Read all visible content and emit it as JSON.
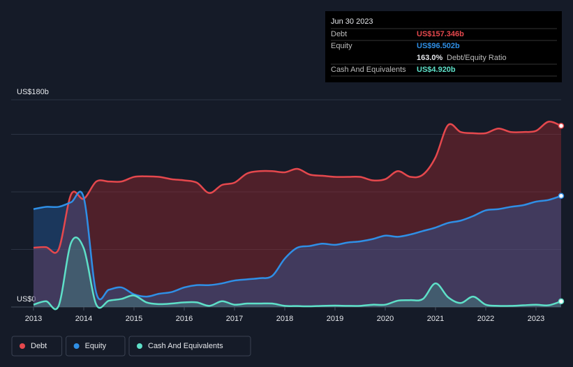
{
  "chart_data": {
    "type": "line",
    "ylim": [
      0,
      180
    ],
    "yticks": [
      {
        "value": 0,
        "label": "US$0"
      },
      {
        "value": 180,
        "label": "US$180b"
      }
    ],
    "ygrid": [
      50,
      100,
      150,
      180
    ],
    "xlim": [
      2013,
      2023.5
    ],
    "xticks": [
      2013,
      2014,
      2015,
      2016,
      2017,
      2018,
      2019,
      2020,
      2021,
      2022,
      2023
    ],
    "x": [
      2013,
      2013.25,
      2013.5,
      2013.75,
      2014,
      2014.25,
      2014.5,
      2014.75,
      2015,
      2015.25,
      2015.5,
      2015.75,
      2016,
      2016.25,
      2016.5,
      2016.75,
      2017,
      2017.25,
      2017.5,
      2017.75,
      2018,
      2018.25,
      2018.5,
      2018.75,
      2019,
      2019.25,
      2019.5,
      2019.75,
      2020,
      2020.25,
      2020.5,
      2020.75,
      2021,
      2021.25,
      2021.5,
      2021.75,
      2022,
      2022.25,
      2022.5,
      2022.75,
      2023,
      2023.25,
      2023.5
    ],
    "series": [
      {
        "name": "Debt",
        "color": "#e5484d",
        "fill": "rgba(150,40,45,0.45)",
        "values": [
          51.5,
          52,
          50,
          98,
          94,
          109,
          109,
          109,
          113,
          113.5,
          113,
          111,
          110,
          108,
          99,
          106,
          108,
          116,
          118,
          118,
          117,
          120,
          115,
          114,
          113,
          113,
          113,
          110,
          111,
          118,
          113,
          115,
          130,
          158,
          152,
          151,
          151,
          155,
          152,
          152,
          153,
          161,
          157.346
        ]
      },
      {
        "name": "Equity",
        "color": "#2f8fe6",
        "fill": "rgba(40,110,190,0.35)",
        "values": [
          85,
          87,
          87,
          91,
          95,
          12,
          15,
          17,
          11,
          9,
          11.5,
          13,
          17,
          19,
          19,
          20.5,
          23,
          24,
          25,
          27,
          42,
          51.5,
          53,
          55,
          54,
          56,
          57,
          59,
          62,
          61,
          63,
          66,
          69,
          73,
          75,
          79,
          84,
          85,
          87,
          88.5,
          91.5,
          93,
          96.502
        ]
      },
      {
        "name": "Cash And Equivalents",
        "color": "#5ee0c8",
        "fill": "rgba(70,170,150,0.3)",
        "values": [
          2,
          5,
          1,
          56,
          51,
          2,
          5.5,
          7,
          10,
          4,
          2.5,
          3,
          4,
          4,
          1,
          5,
          2,
          3,
          3,
          3,
          1,
          0.8,
          0.6,
          1,
          1.2,
          1,
          1,
          2,
          2,
          5.5,
          6,
          7,
          20.5,
          8.5,
          3.5,
          9,
          2,
          1,
          1,
          1.5,
          2,
          1.5,
          4.92
        ]
      }
    ],
    "tooltip": {
      "date": "Jun 30 2023",
      "rows": [
        {
          "label": "Debt",
          "value": "US$157.346b"
        },
        {
          "label": "Equity",
          "value": "US$96.502b"
        }
      ],
      "ratio": "163.0%",
      "ratio_label": "Debt/Equity Ratio",
      "cash": {
        "label": "Cash And Equivalents",
        "value": "US$4.920b"
      }
    }
  }
}
